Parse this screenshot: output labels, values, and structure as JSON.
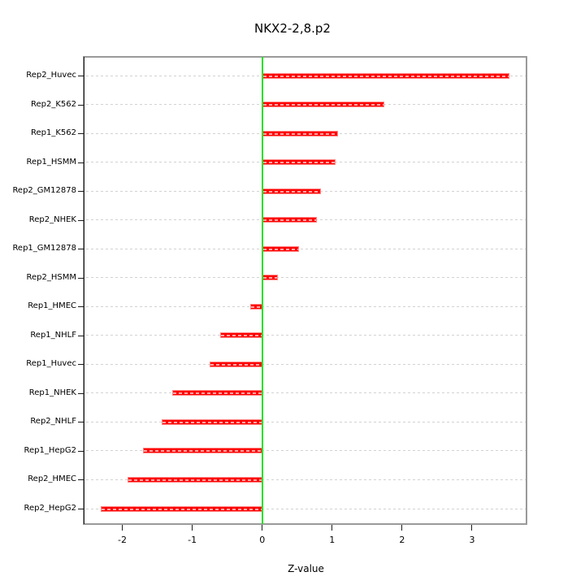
{
  "title": "NKX2-2,8.p2",
  "chart_data": {
    "type": "bar",
    "orientation": "horizontal",
    "title": "NKX2-2,8.p2",
    "xlabel": "Z-value",
    "ylabel": "",
    "categories": [
      "Rep2_Huvec",
      "Rep2_K562",
      "Rep1_K562",
      "Rep1_HSMM",
      "Rep2_GM12878",
      "Rep2_NHEK",
      "Rep1_GM12878",
      "Rep2_HSMM",
      "Rep1_HMEC",
      "Rep1_NHLF",
      "Rep1_Huvec",
      "Rep1_NHEK",
      "Rep2_NHLF",
      "Rep1_HepG2",
      "Rep2_HMEC",
      "Rep2_HepG2"
    ],
    "values": [
      3.54,
      1.75,
      1.08,
      1.05,
      0.84,
      0.78,
      0.53,
      0.23,
      -0.17,
      -0.6,
      -0.75,
      -1.29,
      -1.44,
      -1.7,
      -1.92,
      -2.31
    ],
    "x_ticks": [
      -2,
      -1,
      0,
      1,
      2,
      3
    ],
    "x_tick_labels": [
      "-2",
      "-1",
      "0",
      "1",
      "2",
      "3"
    ],
    "xlim": [
      -2.54,
      3.79
    ],
    "grid": true,
    "legend": null,
    "colors": {
      "bar": "#ff0000",
      "bar_edge": "#ff8585",
      "zero_line": "#22e522",
      "gridline": "#d2d2d2",
      "box_border": "#9a9a9a",
      "axis": "#1c1c1c",
      "text": "#000000",
      "background": "#ffffff"
    }
  }
}
